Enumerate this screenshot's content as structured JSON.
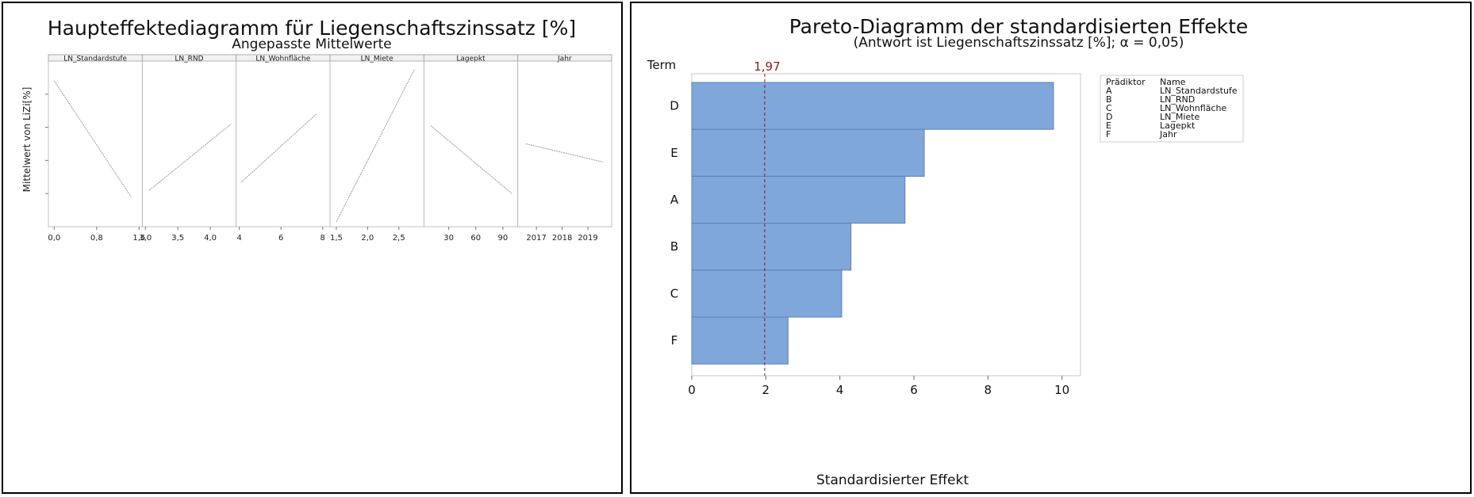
{
  "left": {
    "title": "Haupteffektediagramm für Liegenschaftszinssatz [%]",
    "subtitle": "Angepasste Mittelwerte",
    "ylabel": "Mittelwert von LiZi[%]"
  },
  "right": {
    "title": "Pareto-Diagramm der standardisierten Effekte",
    "subtitle": "(Antwort ist Liegenschaftszinssatz [%]; α = 0,05)",
    "term_label": "Term",
    "xlabel": "Standardisierter Effekt",
    "critical_label": "1,97",
    "legend": {
      "header_predictor": "Prädiktor",
      "header_name": "Name",
      "rows": [
        {
          "predictor": "A",
          "name": "LN_Standardstufe"
        },
        {
          "predictor": "B",
          "name": "LN_RND"
        },
        {
          "predictor": "C",
          "name": "LN_Wohnfläche"
        },
        {
          "predictor": "D",
          "name": "LN_Miete"
        },
        {
          "predictor": "E",
          "name": "Lagepkt"
        },
        {
          "predictor": "F",
          "name": "Jahr"
        }
      ]
    }
  },
  "colors": {
    "bar": "#7fa7da",
    "bar_edge": "#5b82b8",
    "line": "#9a9a9a",
    "critical": "#8b1a1a"
  },
  "chart_data": [
    {
      "type": "line",
      "title": "Haupteffektediagramm für Liegenschaftszinssatz [%]",
      "subtitle": "Angepasste Mittelwerte",
      "ylabel": "Mittelwert von LiZi[%]",
      "ylim": [
        0,
        1
      ],
      "yticks": [
        0.2,
        0.4,
        0.6,
        0.8
      ],
      "panels": [
        {
          "name": "LN_Standardstufe",
          "xlim": [
            -0.05,
            1.6
          ],
          "xticks": [
            0.0,
            0.8,
            1.6
          ],
          "xtick_labels": [
            "0,0",
            "0,8",
            "1,6"
          ],
          "x": [
            0.0,
            1.45
          ],
          "y": [
            0.88,
            0.18
          ]
        },
        {
          "name": "LN_RND",
          "xlim": [
            3.0,
            4.35
          ],
          "xticks": [
            3.0,
            3.5,
            4.0
          ],
          "xtick_labels": [
            "3,0",
            "3,5",
            "4,0"
          ],
          "x": [
            3.06,
            4.32
          ],
          "y": [
            0.22,
            0.62
          ]
        },
        {
          "name": "LN_Wohnfläche",
          "xlim": [
            4.0,
            8.2
          ],
          "xticks": [
            4,
            6,
            8
          ],
          "xtick_labels": [
            "4",
            "6",
            "8"
          ],
          "x": [
            4.1,
            7.7
          ],
          "y": [
            0.27,
            0.68
          ]
        },
        {
          "name": "LN_Miete",
          "xlim": [
            1.45,
            2.85
          ],
          "xticks": [
            1.5,
            2.0,
            2.5
          ],
          "xtick_labels": [
            "1,5",
            "2,0",
            "2,5"
          ],
          "x": [
            1.5,
            2.75
          ],
          "y": [
            0.03,
            0.95
          ]
        },
        {
          "name": "Lagepkt",
          "xlim": [
            6,
            103
          ],
          "xticks": [
            30,
            60,
            90
          ],
          "xtick_labels": [
            "30",
            "60",
            "90"
          ],
          "x": [
            10,
            100
          ],
          "y": [
            0.61,
            0.2
          ]
        },
        {
          "name": "Jahr",
          "xlim": [
            2016.4,
            2019.8
          ],
          "xticks": [
            2017,
            2018,
            2019
          ],
          "xtick_labels": [
            "2017",
            "2018",
            "2019"
          ],
          "x": [
            2016.6,
            2019.6
          ],
          "y": [
            0.5,
            0.39
          ]
        }
      ]
    },
    {
      "type": "bar",
      "orientation": "horizontal",
      "title": "Pareto-Diagramm der standardisierten Effekte",
      "subtitle": "(Antwort ist Liegenschaftszinssatz [%]; α = 0,05)",
      "xlabel": "Standardisierter Effekt",
      "ylabel": "Term",
      "categories": [
        "D",
        "E",
        "A",
        "B",
        "C",
        "F"
      ],
      "values": [
        9.77,
        6.28,
        5.76,
        4.3,
        4.05,
        2.6
      ],
      "xlim": [
        0,
        10.5
      ],
      "xticks": [
        0,
        2,
        4,
        6,
        8,
        10
      ],
      "critical_value": 1.97,
      "critical_label": "1,97",
      "legend": "right"
    }
  ]
}
